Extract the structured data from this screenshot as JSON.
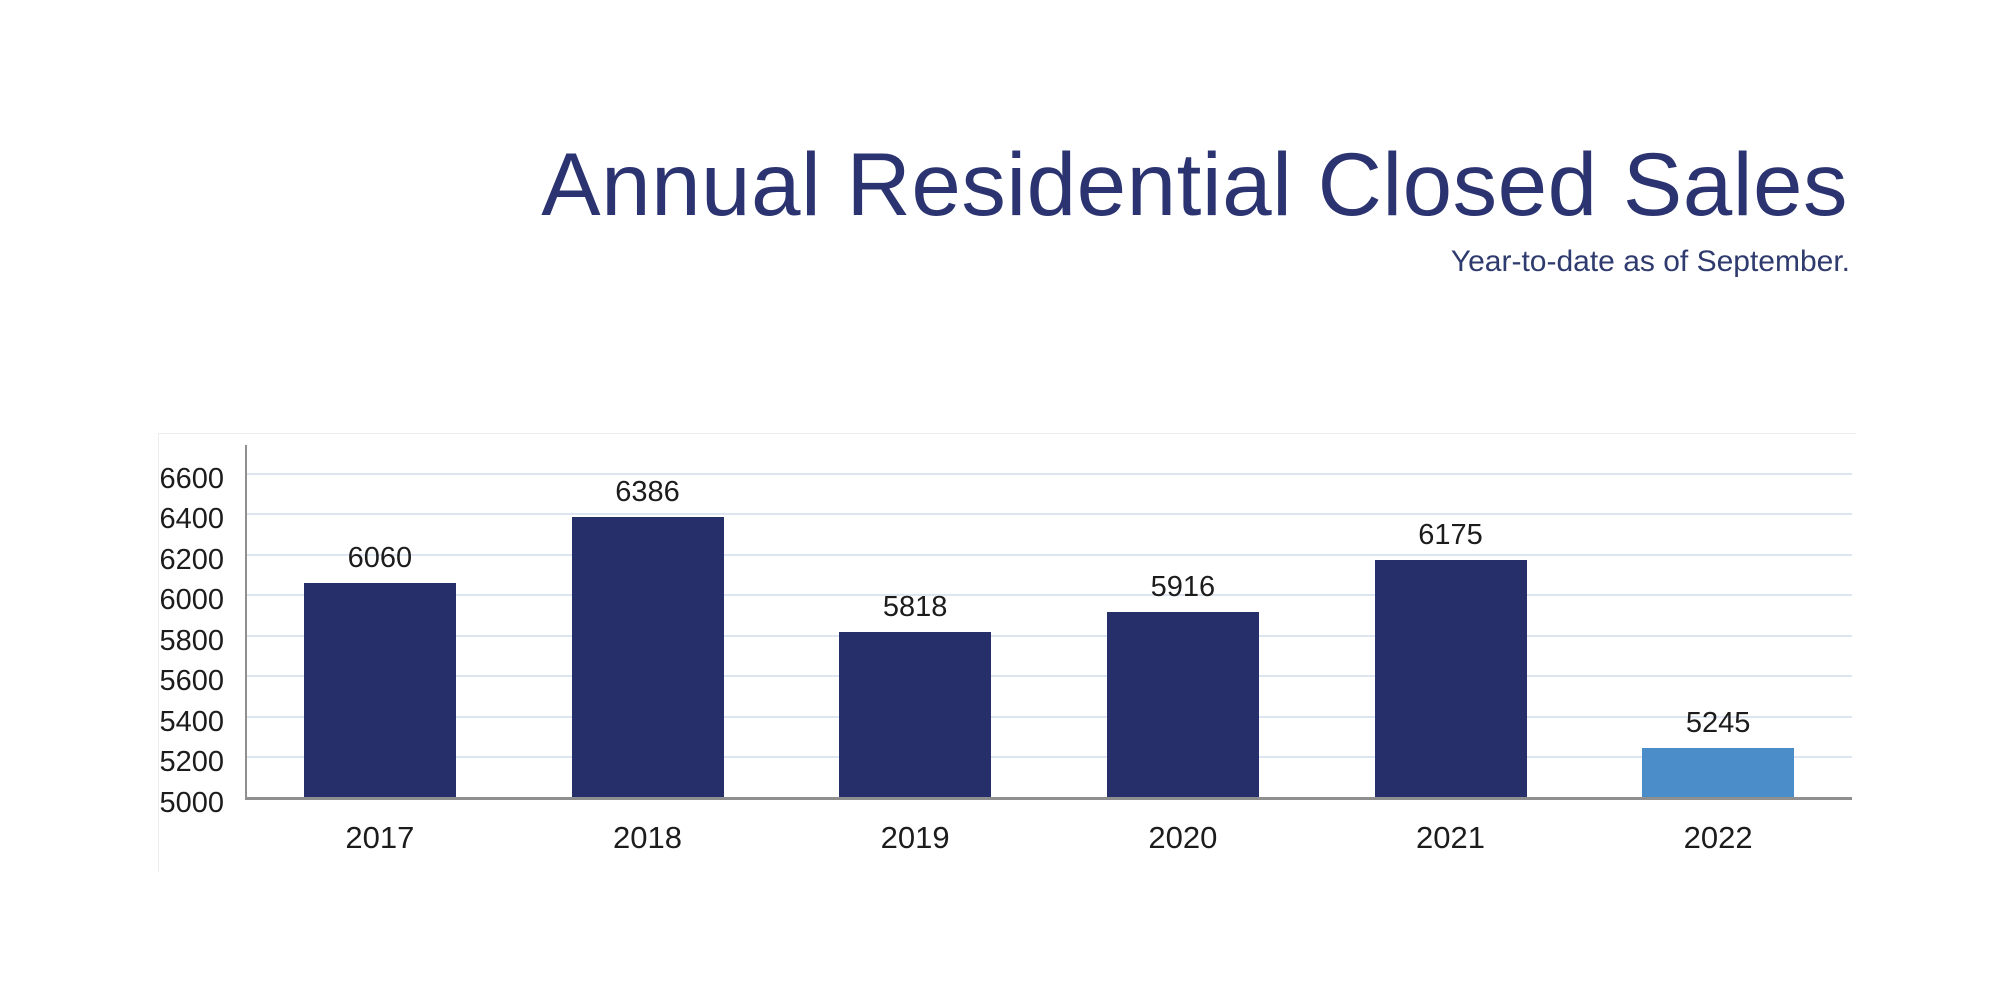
{
  "header": {
    "title": "Annual Residential Closed Sales",
    "subtitle": "Year-to-date as of September.",
    "title_color": "#2b3470",
    "subtitle_color": "#2f3b6e"
  },
  "chart_data": {
    "type": "bar",
    "title": "Annual Residential Closed Sales",
    "subtitle": "Year-to-date as of September.",
    "categories": [
      "2017",
      "2018",
      "2019",
      "2020",
      "2021",
      "2022"
    ],
    "values": [
      6060,
      6386,
      5818,
      5916,
      6175,
      5245
    ],
    "bar_colors": [
      "#272f6b",
      "#272f6b",
      "#272f6b",
      "#272f6b",
      "#272f6b",
      "#4b8dc8"
    ],
    "data_labels": [
      6060,
      6386,
      5818,
      5916,
      6175,
      5245
    ],
    "xlabel": "",
    "ylabel": "",
    "y_ticks": [
      5000,
      5200,
      5400,
      5600,
      5800,
      6000,
      6200,
      6400,
      6600
    ],
    "ylim": [
      5000,
      6743
    ],
    "grid": true,
    "legend": "none",
    "gridline_color": "#dde5f0",
    "axis_color": "#8f8f8f",
    "tick_label_color": "#1c1c1c",
    "data_label_color": "#1c1c1c"
  }
}
